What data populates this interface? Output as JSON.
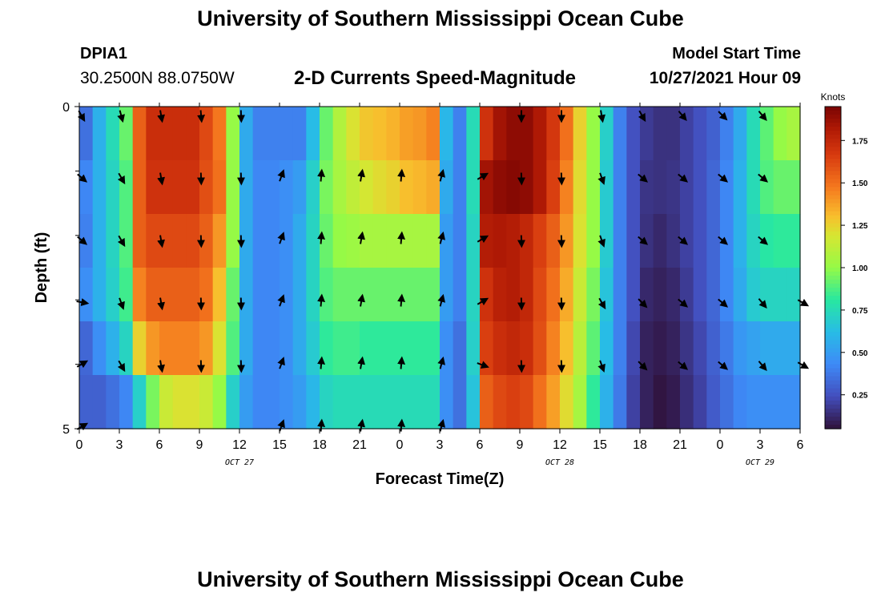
{
  "header": {
    "title": "University of Southern Mississippi Ocean Cube",
    "station_id": "DPIA1",
    "station_coords": "30.2500N  88.0750W",
    "plot_title": "2-D Currents Speed-Magnitude",
    "model_start_label": "Model Start Time",
    "model_start_value": "10/27/2021 Hour 09"
  },
  "footer": {
    "title": "University of Southern Mississippi Ocean Cube"
  },
  "chart_data": {
    "type": "heatmap",
    "title": "2-D Currents Speed-Magnitude",
    "xlabel": "Forecast Time(Z)",
    "ylabel": "Depth (ft)",
    "x_tick_labels": [
      "0",
      "3",
      "6",
      "9",
      "12",
      "15",
      "18",
      "21",
      "0",
      "3",
      "6",
      "9",
      "12",
      "15",
      "18",
      "21",
      "0",
      "3",
      "6"
    ],
    "date_labels": [
      {
        "label": "OCT 27",
        "hour": 12
      },
      {
        "label": "OCT 28",
        "hour": 36
      },
      {
        "label": "OCT 29",
        "hour": 51
      }
    ],
    "y_tick_labels": [
      "0",
      "5"
    ],
    "xlim": [
      0,
      54
    ],
    "ylim": [
      0,
      5
    ],
    "x_hours": [
      0,
      1,
      2,
      3,
      4,
      5,
      6,
      7,
      8,
      9,
      10,
      11,
      12,
      13,
      14,
      15,
      16,
      17,
      18,
      19,
      20,
      21,
      22,
      23,
      24,
      25,
      26,
      27,
      28,
      29,
      30,
      31,
      32,
      33,
      34,
      35,
      36,
      37,
      38,
      39,
      40,
      41,
      42,
      43,
      44,
      45,
      46,
      47,
      48,
      49,
      50,
      51,
      52,
      53,
      54
    ],
    "depth_levels": [
      0.5,
      1.5,
      2.5,
      3.5,
      4.5,
      5.5
    ],
    "speed_knots": [
      [
        0.35,
        0.58,
        0.75,
        0.92,
        1.55,
        1.72,
        1.72,
        1.72,
        1.72,
        1.62,
        1.48,
        1.0,
        0.55,
        0.4,
        0.4,
        0.4,
        0.4,
        0.62,
        0.92,
        1.08,
        1.2,
        1.28,
        1.3,
        1.33,
        1.38,
        1.4,
        1.45,
        0.6,
        0.4,
        0.75,
        1.7,
        1.85,
        1.9,
        1.9,
        1.82,
        1.68,
        1.5,
        1.25,
        1.0,
        0.7,
        0.4,
        0.25,
        0.18,
        0.15,
        0.15,
        0.2,
        0.25,
        0.3,
        0.4,
        0.55,
        0.75,
        0.9,
        1.0,
        1.05,
        1.1
      ],
      [
        0.42,
        0.58,
        0.72,
        0.88,
        1.55,
        1.7,
        1.7,
        1.7,
        1.7,
        1.6,
        1.5,
        1.0,
        0.55,
        0.42,
        0.42,
        0.45,
        0.5,
        0.7,
        0.95,
        1.05,
        1.12,
        1.18,
        1.22,
        1.25,
        1.3,
        1.32,
        1.35,
        0.55,
        0.4,
        0.75,
        1.85,
        1.9,
        1.92,
        1.9,
        1.82,
        1.65,
        1.45,
        1.22,
        1.0,
        0.68,
        0.4,
        0.25,
        0.16,
        0.15,
        0.16,
        0.2,
        0.25,
        0.32,
        0.42,
        0.58,
        0.75,
        0.88,
        0.92,
        0.92,
        0.92
      ],
      [
        0.4,
        0.58,
        0.72,
        0.88,
        1.55,
        1.62,
        1.62,
        1.62,
        1.62,
        1.55,
        1.4,
        1.0,
        0.55,
        0.42,
        0.42,
        0.45,
        0.55,
        0.72,
        0.92,
        1.0,
        1.02,
        1.05,
        1.05,
        1.05,
        1.05,
        1.05,
        1.05,
        0.5,
        0.4,
        0.72,
        1.8,
        1.82,
        1.8,
        1.75,
        1.65,
        1.55,
        1.4,
        1.2,
        1.0,
        0.68,
        0.4,
        0.25,
        0.15,
        0.12,
        0.15,
        0.2,
        0.25,
        0.32,
        0.42,
        0.58,
        0.72,
        0.8,
        0.82,
        0.82,
        0.82
      ],
      [
        0.45,
        0.58,
        0.7,
        0.85,
        1.45,
        1.55,
        1.55,
        1.55,
        1.55,
        1.5,
        1.3,
        0.92,
        0.55,
        0.42,
        0.42,
        0.45,
        0.55,
        0.72,
        0.88,
        0.92,
        0.92,
        0.92,
        0.92,
        0.92,
        0.92,
        0.92,
        0.92,
        0.5,
        0.4,
        0.72,
        1.7,
        1.78,
        1.8,
        1.75,
        1.62,
        1.5,
        1.35,
        1.15,
        0.95,
        0.65,
        0.4,
        0.25,
        0.12,
        0.1,
        0.12,
        0.18,
        0.25,
        0.32,
        0.42,
        0.55,
        0.68,
        0.72,
        0.72,
        0.72,
        0.72
      ],
      [
        0.32,
        0.45,
        0.58,
        0.72,
        1.25,
        1.4,
        1.45,
        1.45,
        1.45,
        1.4,
        1.2,
        0.88,
        0.55,
        0.42,
        0.42,
        0.45,
        0.55,
        0.68,
        0.82,
        0.85,
        0.85,
        0.82,
        0.82,
        0.82,
        0.82,
        0.82,
        0.82,
        0.45,
        0.35,
        0.7,
        1.65,
        1.72,
        1.75,
        1.72,
        1.6,
        1.45,
        1.3,
        1.1,
        0.9,
        0.62,
        0.4,
        0.22,
        0.1,
        0.08,
        0.1,
        0.16,
        0.22,
        0.3,
        0.38,
        0.48,
        0.52,
        0.55,
        0.55,
        0.55,
        0.55
      ],
      [
        0.3,
        0.3,
        0.35,
        0.42,
        0.7,
        0.95,
        1.15,
        1.2,
        1.2,
        1.15,
        1.0,
        0.7,
        0.5,
        0.42,
        0.42,
        0.45,
        0.5,
        0.6,
        0.72,
        0.75,
        0.75,
        0.75,
        0.75,
        0.75,
        0.75,
        0.75,
        0.75,
        0.45,
        0.35,
        0.65,
        1.55,
        1.62,
        1.65,
        1.62,
        1.5,
        1.38,
        1.22,
        1.05,
        0.82,
        0.58,
        0.38,
        0.2,
        0.1,
        0.06,
        0.08,
        0.14,
        0.2,
        0.28,
        0.35,
        0.42,
        0.45,
        0.45,
        0.45,
        0.45,
        0.45
      ]
    ],
    "arrow_hours": [
      0,
      3,
      6,
      9,
      12,
      15,
      18,
      21,
      24,
      27,
      30,
      33,
      36,
      39,
      42,
      45,
      48,
      51,
      54
    ],
    "arrow_depths": [
      0,
      1,
      2,
      3,
      4,
      5
    ],
    "arrow_directions_deg": [
      [
        150,
        165,
        170,
        175,
        178,
        null,
        null,
        null,
        null,
        null,
        null,
        180,
        180,
        170,
        150,
        140,
        135,
        140,
        null
      ],
      [
        130,
        150,
        170,
        178,
        178,
        20,
        5,
        10,
        5,
        15,
        60,
        178,
        178,
        160,
        130,
        130,
        130,
        130,
        null
      ],
      [
        130,
        150,
        170,
        178,
        178,
        20,
        5,
        10,
        5,
        15,
        60,
        178,
        178,
        160,
        130,
        130,
        130,
        130,
        null
      ],
      [
        100,
        160,
        170,
        178,
        178,
        20,
        5,
        10,
        5,
        15,
        60,
        178,
        178,
        150,
        135,
        130,
        130,
        140,
        120
      ],
      [
        60,
        150,
        170,
        178,
        178,
        20,
        5,
        10,
        5,
        15,
        110,
        178,
        178,
        160,
        135,
        130,
        130,
        140,
        120
      ],
      [
        60,
        null,
        null,
        null,
        null,
        20,
        5,
        10,
        5,
        15,
        null,
        null,
        null,
        null,
        null,
        null,
        null,
        null,
        null
      ]
    ],
    "colorbar": {
      "label": "Knots",
      "min": 0.05,
      "max": 1.95,
      "ticks": [
        0.25,
        0.5,
        0.75,
        1.0,
        1.25,
        1.5,
        1.75
      ],
      "tick_labels": [
        "0.25",
        "0.50",
        "0.75",
        "1.00",
        "1.25",
        "1.50",
        "1.75"
      ]
    }
  }
}
